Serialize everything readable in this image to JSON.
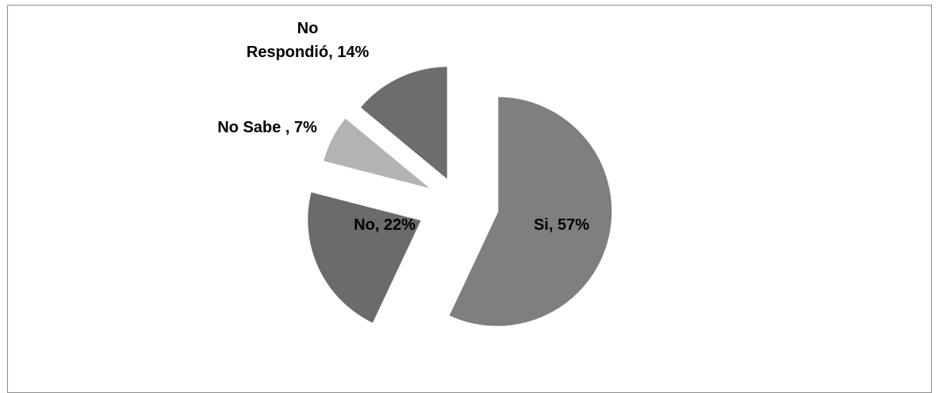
{
  "chart_data": {
    "type": "pie",
    "title": "",
    "exploded": true,
    "slices": [
      {
        "label": "Si",
        "display": "Si, 57%",
        "value": 57,
        "color": "#7f7f7f"
      },
      {
        "label": "No",
        "display": "No, 22%",
        "value": 22,
        "color": "#6b6b6b"
      },
      {
        "label": "No Sabe",
        "display": "No Sabe , 7%",
        "value": 7,
        "color": "#b3b3b3"
      },
      {
        "label": "No Respondió",
        "display": "No Respondió, 14%",
        "display_lines": [
          "No",
          "Respondió, 14%"
        ],
        "value": 14,
        "color": "#6d6d6d"
      }
    ]
  }
}
